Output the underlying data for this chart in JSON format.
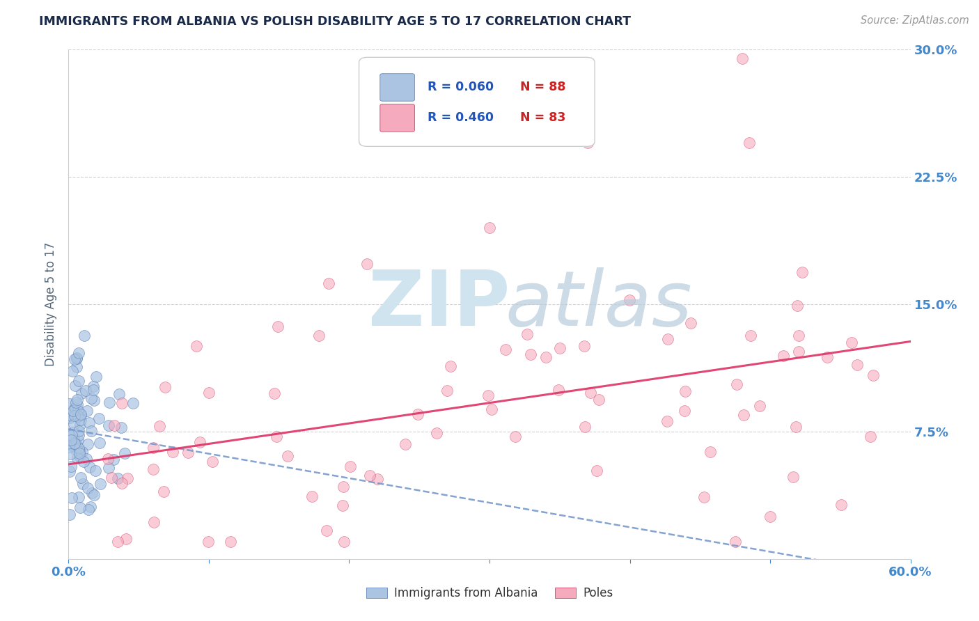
{
  "title": "IMMIGRANTS FROM ALBANIA VS POLISH DISABILITY AGE 5 TO 17 CORRELATION CHART",
  "source": "Source: ZipAtlas.com",
  "ylabel": "Disability Age 5 to 17",
  "xlim": [
    0.0,
    0.6
  ],
  "ylim": [
    0.0,
    0.3
  ],
  "albania_R": 0.06,
  "albania_N": 88,
  "poles_R": 0.46,
  "poles_N": 83,
  "albania_color": "#aac4e2",
  "poles_color": "#f5aabe",
  "albania_edge_color": "#6688bb",
  "poles_edge_color": "#d04468",
  "albania_line_color": "#7799cc",
  "poles_line_color": "#dd3366",
  "title_color": "#1a2a4a",
  "tick_color": "#4488cc",
  "source_color": "#999999",
  "ylabel_color": "#556677",
  "legend_text_color": "#2255bb",
  "watermark_zip_color": "#d0e4f0",
  "watermark_atlas_color": "#b8ccdd",
  "background_color": "#ffffff",
  "grid_color": "#cccccc"
}
